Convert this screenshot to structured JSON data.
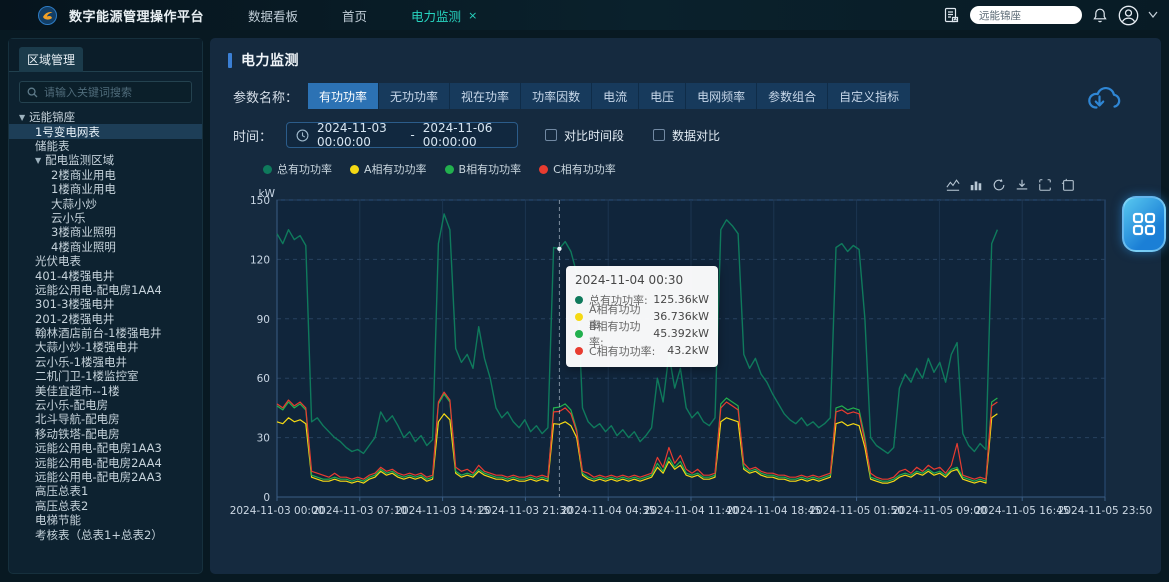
{
  "navbar": {
    "title": "数字能源管理操作平台",
    "menu": [
      {
        "label": "数据看板"
      },
      {
        "label": "首页"
      }
    ],
    "active_tab": {
      "label": "电力监测",
      "close": "×"
    },
    "search_value": "远能锦座",
    "icons": [
      "report-icon",
      "bell-icon",
      "avatar-icon",
      "caret-down-icon"
    ]
  },
  "sidebar": {
    "tab": "区域管理",
    "search_placeholder": "请输入关键词搜索",
    "tree": [
      {
        "label": "远能锦座",
        "level": 0,
        "caret": true
      },
      {
        "label": "1号变电网表",
        "level": 1,
        "selected": true
      },
      {
        "label": "储能表",
        "level": 1
      },
      {
        "label": "配电监测区域",
        "level": 1,
        "caret": true
      },
      {
        "label": "2楼商业用电",
        "level": 2
      },
      {
        "label": "1楼商业用电",
        "level": 2
      },
      {
        "label": "大蒜小炒",
        "level": 2
      },
      {
        "label": "云小乐",
        "level": 2
      },
      {
        "label": "3楼商业照明",
        "level": 2
      },
      {
        "label": "4楼商业照明",
        "level": 2
      },
      {
        "label": "光伏电表",
        "level": 1
      },
      {
        "label": "401-4楼强电井",
        "level": 1
      },
      {
        "label": "远能公用电-配电房1AA4",
        "level": 1
      },
      {
        "label": "301-3楼强电井",
        "level": 1
      },
      {
        "label": "201-2楼强电井",
        "level": 1
      },
      {
        "label": "翰林酒店前台-1楼强电井",
        "level": 1
      },
      {
        "label": "大蒜小炒-1楼强电井",
        "level": 1
      },
      {
        "label": "云小乐-1楼强电井",
        "level": 1
      },
      {
        "label": "二机门卫-1楼监控室",
        "level": 1
      },
      {
        "label": "美佳宜超市--1楼",
        "level": 1
      },
      {
        "label": "云小乐-配电房",
        "level": 1
      },
      {
        "label": "北斗导航-配电房",
        "level": 1
      },
      {
        "label": "移动铁塔-配电房",
        "level": 1
      },
      {
        "label": "远能公用电-配电房1AA3",
        "level": 1
      },
      {
        "label": "远能公用电-配电房2AA4",
        "level": 1
      },
      {
        "label": "远能公用电-配电房2AA3",
        "level": 1
      },
      {
        "label": "高压总表1",
        "level": 1
      },
      {
        "label": "高压总表2",
        "level": 1
      },
      {
        "label": "电梯节能",
        "level": 1
      },
      {
        "label": "考核表（总表1+总表2）",
        "level": 1
      }
    ]
  },
  "main": {
    "section_title": "电力监测",
    "param_label": "参数名称：",
    "params": [
      "有功功率",
      "无功功率",
      "视在功率",
      "功率因数",
      "电流",
      "电压",
      "电网频率",
      "参数组合",
      "自定义指标"
    ],
    "active_param": "有功功率",
    "time_label": "时间：",
    "time_start": "2024-11-03 00:00:00",
    "time_sep": "-",
    "time_end": "2024-11-06 00:00:00",
    "checkboxes": [
      {
        "label": "对比时间段",
        "checked": false
      },
      {
        "label": "数据对比",
        "checked": false
      }
    ],
    "chart_toolbar": [
      "line-chart-icon",
      "bar-chart-icon",
      "refresh-icon",
      "download-icon",
      "zoom-box-icon",
      "zoom-reset-icon"
    ],
    "download_icon": "cloud-download-icon",
    "float_button_icon": "grid-menu-icon"
  },
  "colors": {
    "accent": "#27d5c0",
    "title_bar": "#3b7fd4",
    "param_active": "#2c72b4"
  },
  "chart_data": {
    "type": "line",
    "ylabel": "kW",
    "ylim": [
      0,
      150
    ],
    "yticks": [
      0,
      30,
      60,
      90,
      120,
      150
    ],
    "x_axis_labels": [
      "2024-11-03 00:00",
      "2024-11-03 07:10",
      "2024-11-03 14:15",
      "2024-11-03 21:30",
      "2024-11-04 04:35",
      "2024-11-04 11:40",
      "2024-11-04 18:45",
      "2024-11-05 01:50",
      "2024-11-05 09:00",
      "2024-11-05 16:45",
      "2024-11-05 23:50"
    ],
    "x_total_hours": 71.833,
    "sample_interval_hours": 0.5,
    "grid": true,
    "legend_position": "top-left",
    "crosshair_hours": 24.5,
    "series": [
      {
        "name": "总有功功率",
        "color": "#0f7a5c",
        "values": [
          133,
          128,
          135,
          130,
          132,
          127,
          38,
          40,
          36,
          33,
          30,
          28,
          25,
          23,
          24,
          22,
          26,
          30,
          43,
          38,
          41,
          36,
          30,
          33,
          28,
          31,
          26,
          29,
          128,
          143,
          135,
          75,
          68,
          72,
          65,
          86,
          70,
          60,
          45,
          40,
          43,
          38,
          35,
          39,
          33,
          36,
          32,
          35,
          126,
          125.4,
          129,
          124,
          113,
          45,
          38,
          35,
          37,
          33,
          36,
          31,
          34,
          30,
          33,
          28,
          31,
          35,
          60,
          48,
          72,
          55,
          65,
          45,
          40,
          43,
          38,
          36,
          40,
          135,
          140,
          137,
          133,
          72,
          65,
          70,
          62,
          58,
          52,
          47,
          42,
          39,
          37,
          40,
          36,
          38,
          35,
          37,
          40,
          126,
          128,
          124,
          127,
          125,
          90,
          30,
          26,
          24,
          22,
          25,
          55,
          62,
          58,
          65,
          60,
          70,
          63,
          68,
          58,
          72,
          78,
          32,
          26,
          23,
          27,
          24,
          128,
          135
        ]
      },
      {
        "name": "A相有功功率",
        "color": "#f5d914",
        "values": [
          38,
          37,
          40,
          38,
          39,
          37,
          10,
          9,
          8,
          8,
          9,
          8,
          8,
          7,
          8,
          7,
          9,
          10,
          13,
          11,
          12,
          10,
          9,
          10,
          9,
          10,
          8,
          9,
          38,
          42,
          39,
          12,
          10,
          11,
          10,
          13,
          11,
          10,
          9,
          9,
          8,
          9,
          8,
          8,
          9,
          8,
          9,
          8,
          37,
          36.7,
          38,
          36,
          30,
          11,
          9,
          8,
          9,
          8,
          9,
          8,
          9,
          8,
          9,
          8,
          9,
          10,
          15,
          12,
          18,
          14,
          16,
          11,
          10,
          11,
          9,
          9,
          10,
          38,
          40,
          39,
          38,
          14,
          12,
          13,
          11,
          10,
          10,
          9,
          9,
          8,
          8,
          9,
          8,
          9,
          8,
          9,
          10,
          37,
          38,
          36,
          37,
          36,
          25,
          9,
          8,
          7,
          7,
          8,
          10,
          11,
          10,
          12,
          11,
          13,
          11,
          12,
          10,
          13,
          14,
          9,
          8,
          7,
          8,
          7,
          40,
          42
        ]
      },
      {
        "name": "B相有功功率",
        "color": "#22b04e",
        "values": [
          46,
          44,
          48,
          45,
          47,
          44,
          11,
          10,
          9,
          9,
          10,
          9,
          9,
          8,
          9,
          8,
          10,
          11,
          14,
          12,
          13,
          11,
          10,
          11,
          10,
          11,
          9,
          10,
          47,
          52,
          48,
          13,
          11,
          12,
          11,
          14,
          12,
          11,
          10,
          10,
          9,
          10,
          9,
          9,
          10,
          9,
          10,
          9,
          45,
          45.4,
          47,
          44,
          34,
          12,
          10,
          9,
          10,
          9,
          10,
          9,
          10,
          9,
          10,
          9,
          10,
          11,
          17,
          13,
          20,
          15,
          18,
          12,
          11,
          12,
          10,
          10,
          11,
          47,
          50,
          48,
          46,
          15,
          13,
          14,
          12,
          11,
          11,
          10,
          10,
          9,
          9,
          10,
          9,
          10,
          9,
          10,
          11,
          45,
          46,
          44,
          45,
          44,
          30,
          10,
          9,
          8,
          8,
          9,
          11,
          12,
          11,
          13,
          12,
          14,
          12,
          13,
          11,
          14,
          15,
          10,
          9,
          8,
          9,
          8,
          48,
          50
        ]
      },
      {
        "name": "C相有功功率",
        "color": "#e83c30",
        "values": [
          47,
          45,
          49,
          46,
          48,
          45,
          13,
          12,
          11,
          10,
          12,
          10,
          10,
          9,
          10,
          9,
          11,
          12,
          15,
          13,
          14,
          12,
          11,
          12,
          11,
          12,
          10,
          11,
          48,
          53,
          49,
          15,
          13,
          14,
          12,
          16,
          13,
          12,
          11,
          11,
          10,
          11,
          10,
          10,
          11,
          10,
          11,
          10,
          43,
          43.2,
          45,
          42,
          33,
          13,
          12,
          10,
          11,
          10,
          11,
          10,
          11,
          10,
          11,
          10,
          11,
          12,
          20,
          15,
          25,
          17,
          21,
          14,
          12,
          14,
          11,
          11,
          12,
          45,
          48,
          46,
          44,
          17,
          14,
          15,
          13,
          12,
          12,
          11,
          11,
          10,
          10,
          11,
          10,
          11,
          10,
          11,
          12,
          43,
          44,
          42,
          43,
          42,
          28,
          12,
          10,
          9,
          9,
          10,
          13,
          14,
          12,
          15,
          13,
          16,
          14,
          15,
          12,
          16,
          27,
          11,
          10,
          9,
          10,
          9,
          46,
          48
        ]
      }
    ],
    "tooltip": {
      "title": "2024-11-04 00:30",
      "rows": [
        {
          "name": "总有功功率:",
          "value": "125.36kW",
          "color": "#0f7a5c"
        },
        {
          "name": "A相有功功率:",
          "value": "36.736kW",
          "color": "#f5d914"
        },
        {
          "name": "B相有功功率:",
          "value": "45.392kW",
          "color": "#22b04e"
        },
        {
          "name": "C相有功功率:",
          "value": "43.2kW",
          "color": "#e83c30"
        }
      ]
    }
  }
}
